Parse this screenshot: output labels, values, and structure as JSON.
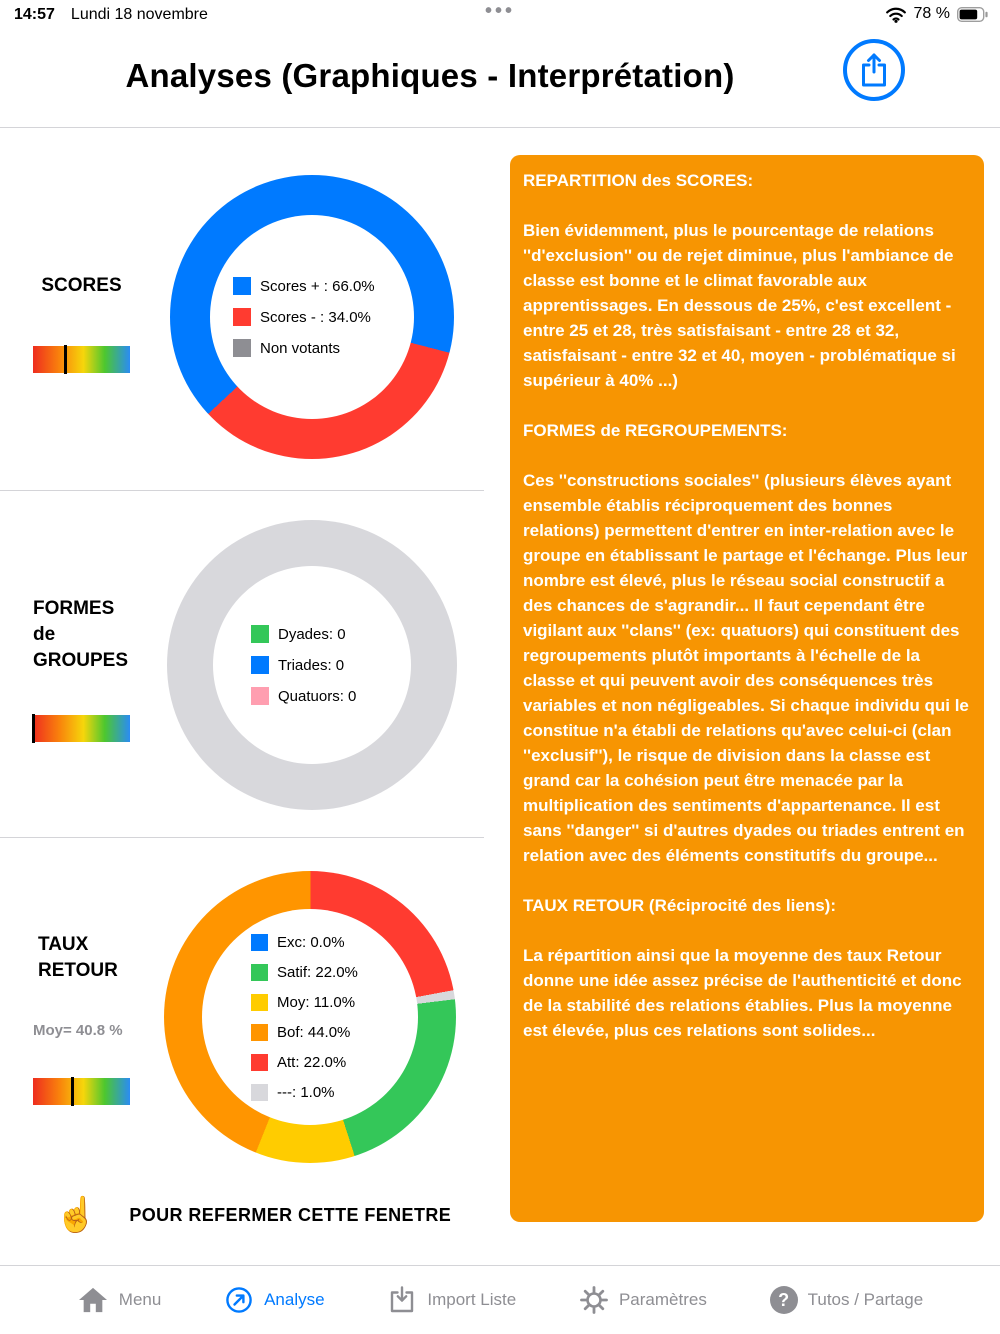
{
  "status_bar": {
    "time": "14:57",
    "date": "Lundi 18 novembre",
    "center_dots": "•••",
    "battery_label": "78 %"
  },
  "header": {
    "title": "Analyses (Graphiques - Interprétation)"
  },
  "sections": {
    "scores": {
      "label": "SCORES"
    },
    "groupes": {
      "label": "FORMES\nde\nGROUPES"
    },
    "taux": {
      "label": "TAUX\nRETOUR",
      "moyenne": "Moy= 40.8 %"
    }
  },
  "chart_data": [
    {
      "type": "pie",
      "title": "SCORES",
      "legend_position": "center",
      "start_angle": 227,
      "gauge_marker_pct": 34,
      "empty_color": "#D8D8DC",
      "segments": [
        {
          "label": "Scores + : 66.0%",
          "value": 66.0,
          "color": "#007AFF"
        },
        {
          "label": "Scores - : 34.0%",
          "value": 34.0,
          "color": "#FF3B30"
        },
        {
          "label": "Non votants",
          "value": 0.0,
          "color": "#8E8E93"
        }
      ]
    },
    {
      "type": "pie",
      "title": "FORMES de GROUPES",
      "legend_position": "center",
      "start_angle": 0,
      "gauge_marker_pct": 0,
      "empty_color": "#D8D8DC",
      "segments": [
        {
          "label": "Dyades: 0",
          "value": 0,
          "color": "#34C759"
        },
        {
          "label": "Triades: 0",
          "value": 0,
          "color": "#007AFF"
        },
        {
          "label": "Quatuors: 0",
          "value": 0,
          "color": "#FF9EB0"
        }
      ]
    },
    {
      "type": "pie",
      "title": "TAUX RETOUR",
      "subtitle": "Moy= 40.8 %",
      "legend_position": "center",
      "start_angle": 83,
      "gauge_marker_pct": 40.8,
      "empty_color": "#D8D8DC",
      "segments": [
        {
          "label": "Exc: 0.0%",
          "value": 0.0,
          "color": "#007AFF"
        },
        {
          "label": "Satif: 22.0%",
          "value": 22.0,
          "color": "#34C759"
        },
        {
          "label": "Moy: 11.0%",
          "value": 11.0,
          "color": "#FFCC00"
        },
        {
          "label": "Bof: 44.0%",
          "value": 44.0,
          "color": "#FF9500"
        },
        {
          "label": "Att: 22.0%",
          "value": 22.0,
          "color": "#FF3B30"
        },
        {
          "label": "---: 1.0%",
          "value": 1.0,
          "color": "#D8D8DC"
        }
      ]
    }
  ],
  "info_panel": {
    "background": "#F79502",
    "sections": [
      {
        "heading": "REPARTITION des SCORES:",
        "body": "Bien évidemment, plus le pourcentage de relations ''d'exclusion'' ou de rejet diminue, plus l'ambiance de classe est bonne et le climat favorable aux apprentissages. En dessous de 25%, c'est excellent - entre 25 et 28, très satisfaisant - entre 28 et 32, satisfaisant -  entre 32 et 40, moyen - problématique si supérieur à 40% ...)"
      },
      {
        "heading": "FORMES de REGROUPEMENTS:",
        "body": "Ces ''constructions sociales'' (plusieurs élèves ayant ensemble établis réciproquement des bonnes relations) permettent d'entrer en inter-relation avec le groupe en établissant le partage et l'échange. Plus leur nombre est élevé, plus le réseau social constructif a des chances de s'agrandir... Il faut cependant être vigilant aux ''clans'' (ex: quatuors) qui constituent des regroupements plutôt importants à l'échelle de la classe et qui peuvent avoir des conséquences très variables et non négligeables. Si chaque individu qui le constitue n'a établi de relations qu'avec celui-ci (clan ''exclusif''), le risque de division dans la classe est grand car la cohésion peut être menacée par la multiplication des sentiments d'appartenance. Il est sans ''danger'' si d'autres dyades ou triades entrent en relation avec des éléments constitutifs du groupe..."
      },
      {
        "heading": "TAUX RETOUR (Réciprocité des liens):",
        "body": "La répartition ainsi que la moyenne des taux Retour donne une idée assez précise de l'authenticité et donc de la stabilité des relations établies. Plus la moyenne est élevée, plus ces relations sont solides..."
      }
    ]
  },
  "footer": {
    "hand_glyph": "☝",
    "close_hint": "POUR REFERMER CETTE FENETRE"
  },
  "tab_bar": {
    "active": "Analyse",
    "active_color": "#007AFF",
    "inactive_color": "#8E8E93",
    "question_glyph": "?",
    "items": [
      {
        "label": "Menu",
        "icon": "house-icon",
        "active": false
      },
      {
        "label": "Analyse",
        "icon": "compass-icon",
        "active": true
      },
      {
        "label": "Import Liste",
        "icon": "import-tray-icon",
        "active": false
      },
      {
        "label": "Paramètres",
        "icon": "gear-icon",
        "active": false
      },
      {
        "label": "Tutos / Partage",
        "icon": "question-icon",
        "active": false
      }
    ]
  }
}
